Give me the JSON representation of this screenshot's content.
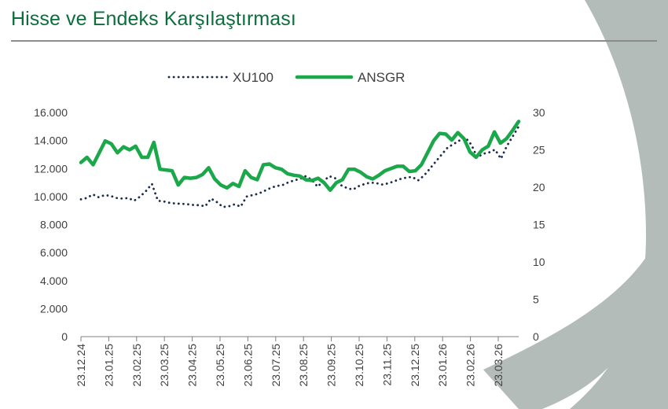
{
  "header": {
    "title": "Hisse ve Endeks Karşılaştırması"
  },
  "colors": {
    "title": "#0b6e3c",
    "xu100": "#1b2b4b",
    "ansgr": "#1aa84a",
    "shape": "#b3bcb8",
    "axis": "#7f7f7f"
  },
  "chart_data": {
    "type": "line",
    "title": "",
    "legend_position": "top",
    "grid": false,
    "x_labels": [
      "23.12.24",
      "23.01.25",
      "23.02.25",
      "23.03.25",
      "23.04.25",
      "23.05.25",
      "23.06.25",
      "23.07.25",
      "23.08.25",
      "23.09.25",
      "23.10.25",
      "23.11.25",
      "23.12.25",
      "23.01.26",
      "23.02.26",
      "23.03.26"
    ],
    "y_left": {
      "ticks": [
        "0",
        "2.000",
        "4.000",
        "6.000",
        "8.000",
        "10.000",
        "12.000",
        "14.000",
        "16.000"
      ],
      "range": [
        0,
        16000
      ]
    },
    "y_right": {
      "ticks": [
        "0",
        "5",
        "10",
        "15",
        "20",
        "25",
        "30"
      ],
      "range": [
        0,
        30
      ]
    },
    "series": [
      {
        "name": "XU100",
        "axis": "left",
        "style": "dotted",
        "values": [
          9800,
          9900,
          10150,
          9950,
          10100,
          10050,
          9900,
          9850,
          9900,
          9700,
          10000,
          10400,
          10900,
          9700,
          9650,
          9550,
          9500,
          9480,
          9450,
          9400,
          9380,
          9300,
          9850,
          9600,
          9250,
          9300,
          9450,
          9280,
          10000,
          10100,
          10200,
          10400,
          10600,
          10750,
          10800,
          11000,
          11150,
          11250,
          11450,
          11200,
          10700,
          11100,
          11450,
          11300,
          10800,
          10600,
          10500,
          10750,
          10900,
          11000,
          10950,
          10850,
          10950,
          11100,
          11250,
          11350,
          11400,
          11150,
          11500,
          12000,
          12500,
          13000,
          13500,
          13750,
          14000,
          14200,
          13700,
          12800,
          13050,
          13150,
          13350,
          12700,
          13600,
          14300,
          15000
        ]
      },
      {
        "name": "ANSGR",
        "axis": "right",
        "style": "solid",
        "values": [
          23.3,
          24.0,
          23.0,
          24.6,
          26.2,
          25.8,
          24.6,
          25.4,
          25.0,
          25.5,
          24.0,
          24.0,
          26.0,
          22.4,
          22.3,
          22.2,
          20.3,
          21.3,
          21.2,
          21.3,
          21.7,
          22.6,
          21.1,
          20.3,
          19.9,
          20.5,
          20.1,
          22.2,
          21.3,
          21.0,
          23.0,
          23.1,
          22.6,
          22.4,
          21.8,
          21.6,
          21.5,
          21.0,
          20.9,
          21.2,
          20.6,
          19.6,
          20.6,
          21.0,
          22.4,
          22.4,
          22.0,
          21.4,
          21.1,
          21.6,
          22.2,
          22.5,
          22.8,
          22.8,
          22.1,
          22.2,
          23.0,
          24.6,
          26.2,
          27.2,
          27.1,
          26.3,
          27.3,
          26.5,
          24.7,
          24.0,
          25.0,
          25.5,
          27.4,
          25.9,
          26.5,
          27.6,
          28.8
        ]
      }
    ]
  }
}
